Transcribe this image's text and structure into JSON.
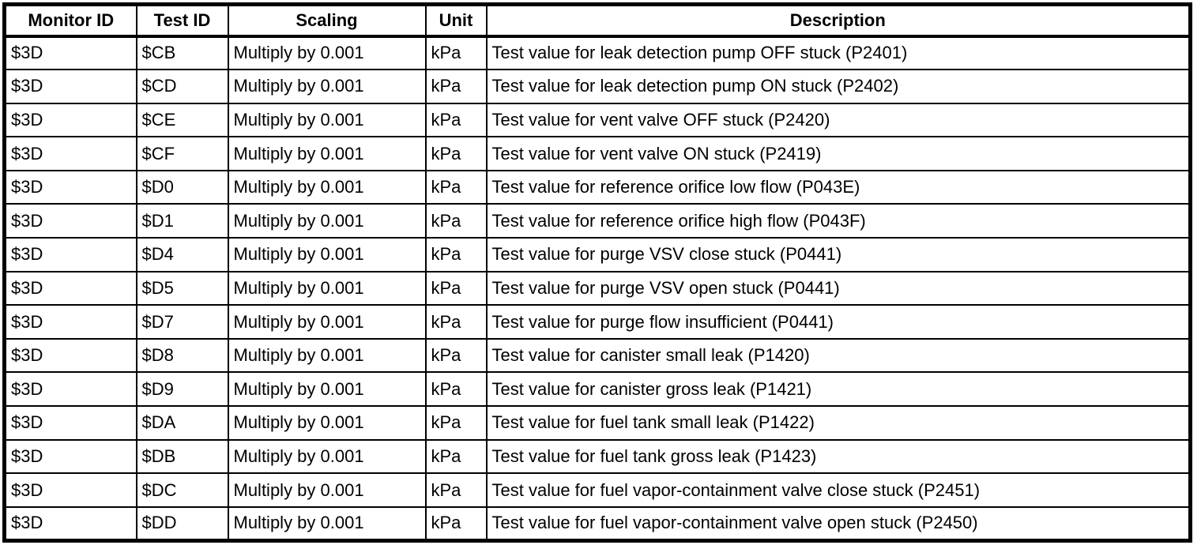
{
  "colors": {
    "background": "#ffffff",
    "border": "#000000",
    "text": "#000000"
  },
  "table": {
    "columns": [
      {
        "id": "monitor_id",
        "label": "Monitor ID"
      },
      {
        "id": "test_id",
        "label": "Test ID"
      },
      {
        "id": "scaling",
        "label": "Scaling"
      },
      {
        "id": "unit",
        "label": "Unit"
      },
      {
        "id": "description",
        "label": "Description"
      }
    ],
    "rows": [
      {
        "monitor_id": "$3D",
        "test_id": "$CB",
        "scaling": "Multiply by 0.001",
        "unit": "kPa",
        "description": "Test value for leak detection pump OFF stuck (P2401)"
      },
      {
        "monitor_id": "$3D",
        "test_id": "$CD",
        "scaling": "Multiply by 0.001",
        "unit": "kPa",
        "description": "Test value for leak detection pump ON stuck (P2402)"
      },
      {
        "monitor_id": "$3D",
        "test_id": "$CE",
        "scaling": "Multiply by 0.001",
        "unit": "kPa",
        "description": "Test value for vent valve OFF stuck (P2420)"
      },
      {
        "monitor_id": "$3D",
        "test_id": "$CF",
        "scaling": "Multiply by 0.001",
        "unit": "kPa",
        "description": "Test value for vent valve ON stuck (P2419)"
      },
      {
        "monitor_id": "$3D",
        "test_id": "$D0",
        "scaling": "Multiply by 0.001",
        "unit": "kPa",
        "description": "Test value for reference orifice low flow (P043E)"
      },
      {
        "monitor_id": "$3D",
        "test_id": "$D1",
        "scaling": "Multiply by 0.001",
        "unit": "kPa",
        "description": "Test value for reference orifice high flow (P043F)"
      },
      {
        "monitor_id": "$3D",
        "test_id": "$D4",
        "scaling": "Multiply by 0.001",
        "unit": "kPa",
        "description": "Test value for purge VSV close stuck (P0441)"
      },
      {
        "monitor_id": "$3D",
        "test_id": "$D5",
        "scaling": "Multiply by 0.001",
        "unit": "kPa",
        "description": "Test value for purge VSV open stuck (P0441)"
      },
      {
        "monitor_id": "$3D",
        "test_id": "$D7",
        "scaling": "Multiply by 0.001",
        "unit": "kPa",
        "description": "Test value for purge flow insufficient (P0441)"
      },
      {
        "monitor_id": "$3D",
        "test_id": "$D8",
        "scaling": "Multiply by 0.001",
        "unit": "kPa",
        "description": "Test value for canister small leak (P1420)"
      },
      {
        "monitor_id": "$3D",
        "test_id": "$D9",
        "scaling": "Multiply by 0.001",
        "unit": "kPa",
        "description": "Test value for canister gross leak (P1421)"
      },
      {
        "monitor_id": "$3D",
        "test_id": "$DA",
        "scaling": "Multiply by 0.001",
        "unit": "kPa",
        "description": "Test value for fuel tank small leak (P1422)"
      },
      {
        "monitor_id": "$3D",
        "test_id": "$DB",
        "scaling": "Multiply by 0.001",
        "unit": "kPa",
        "description": "Test value for fuel tank gross leak (P1423)"
      },
      {
        "monitor_id": "$3D",
        "test_id": "$DC",
        "scaling": "Multiply by 0.001",
        "unit": "kPa",
        "description": "Test value for fuel vapor-containment valve close stuck (P2451)"
      },
      {
        "monitor_id": "$3D",
        "test_id": "$DD",
        "scaling": "Multiply by 0.001",
        "unit": "kPa",
        "description": "Test value for fuel vapor-containment valve open stuck (P2450)"
      }
    ]
  }
}
